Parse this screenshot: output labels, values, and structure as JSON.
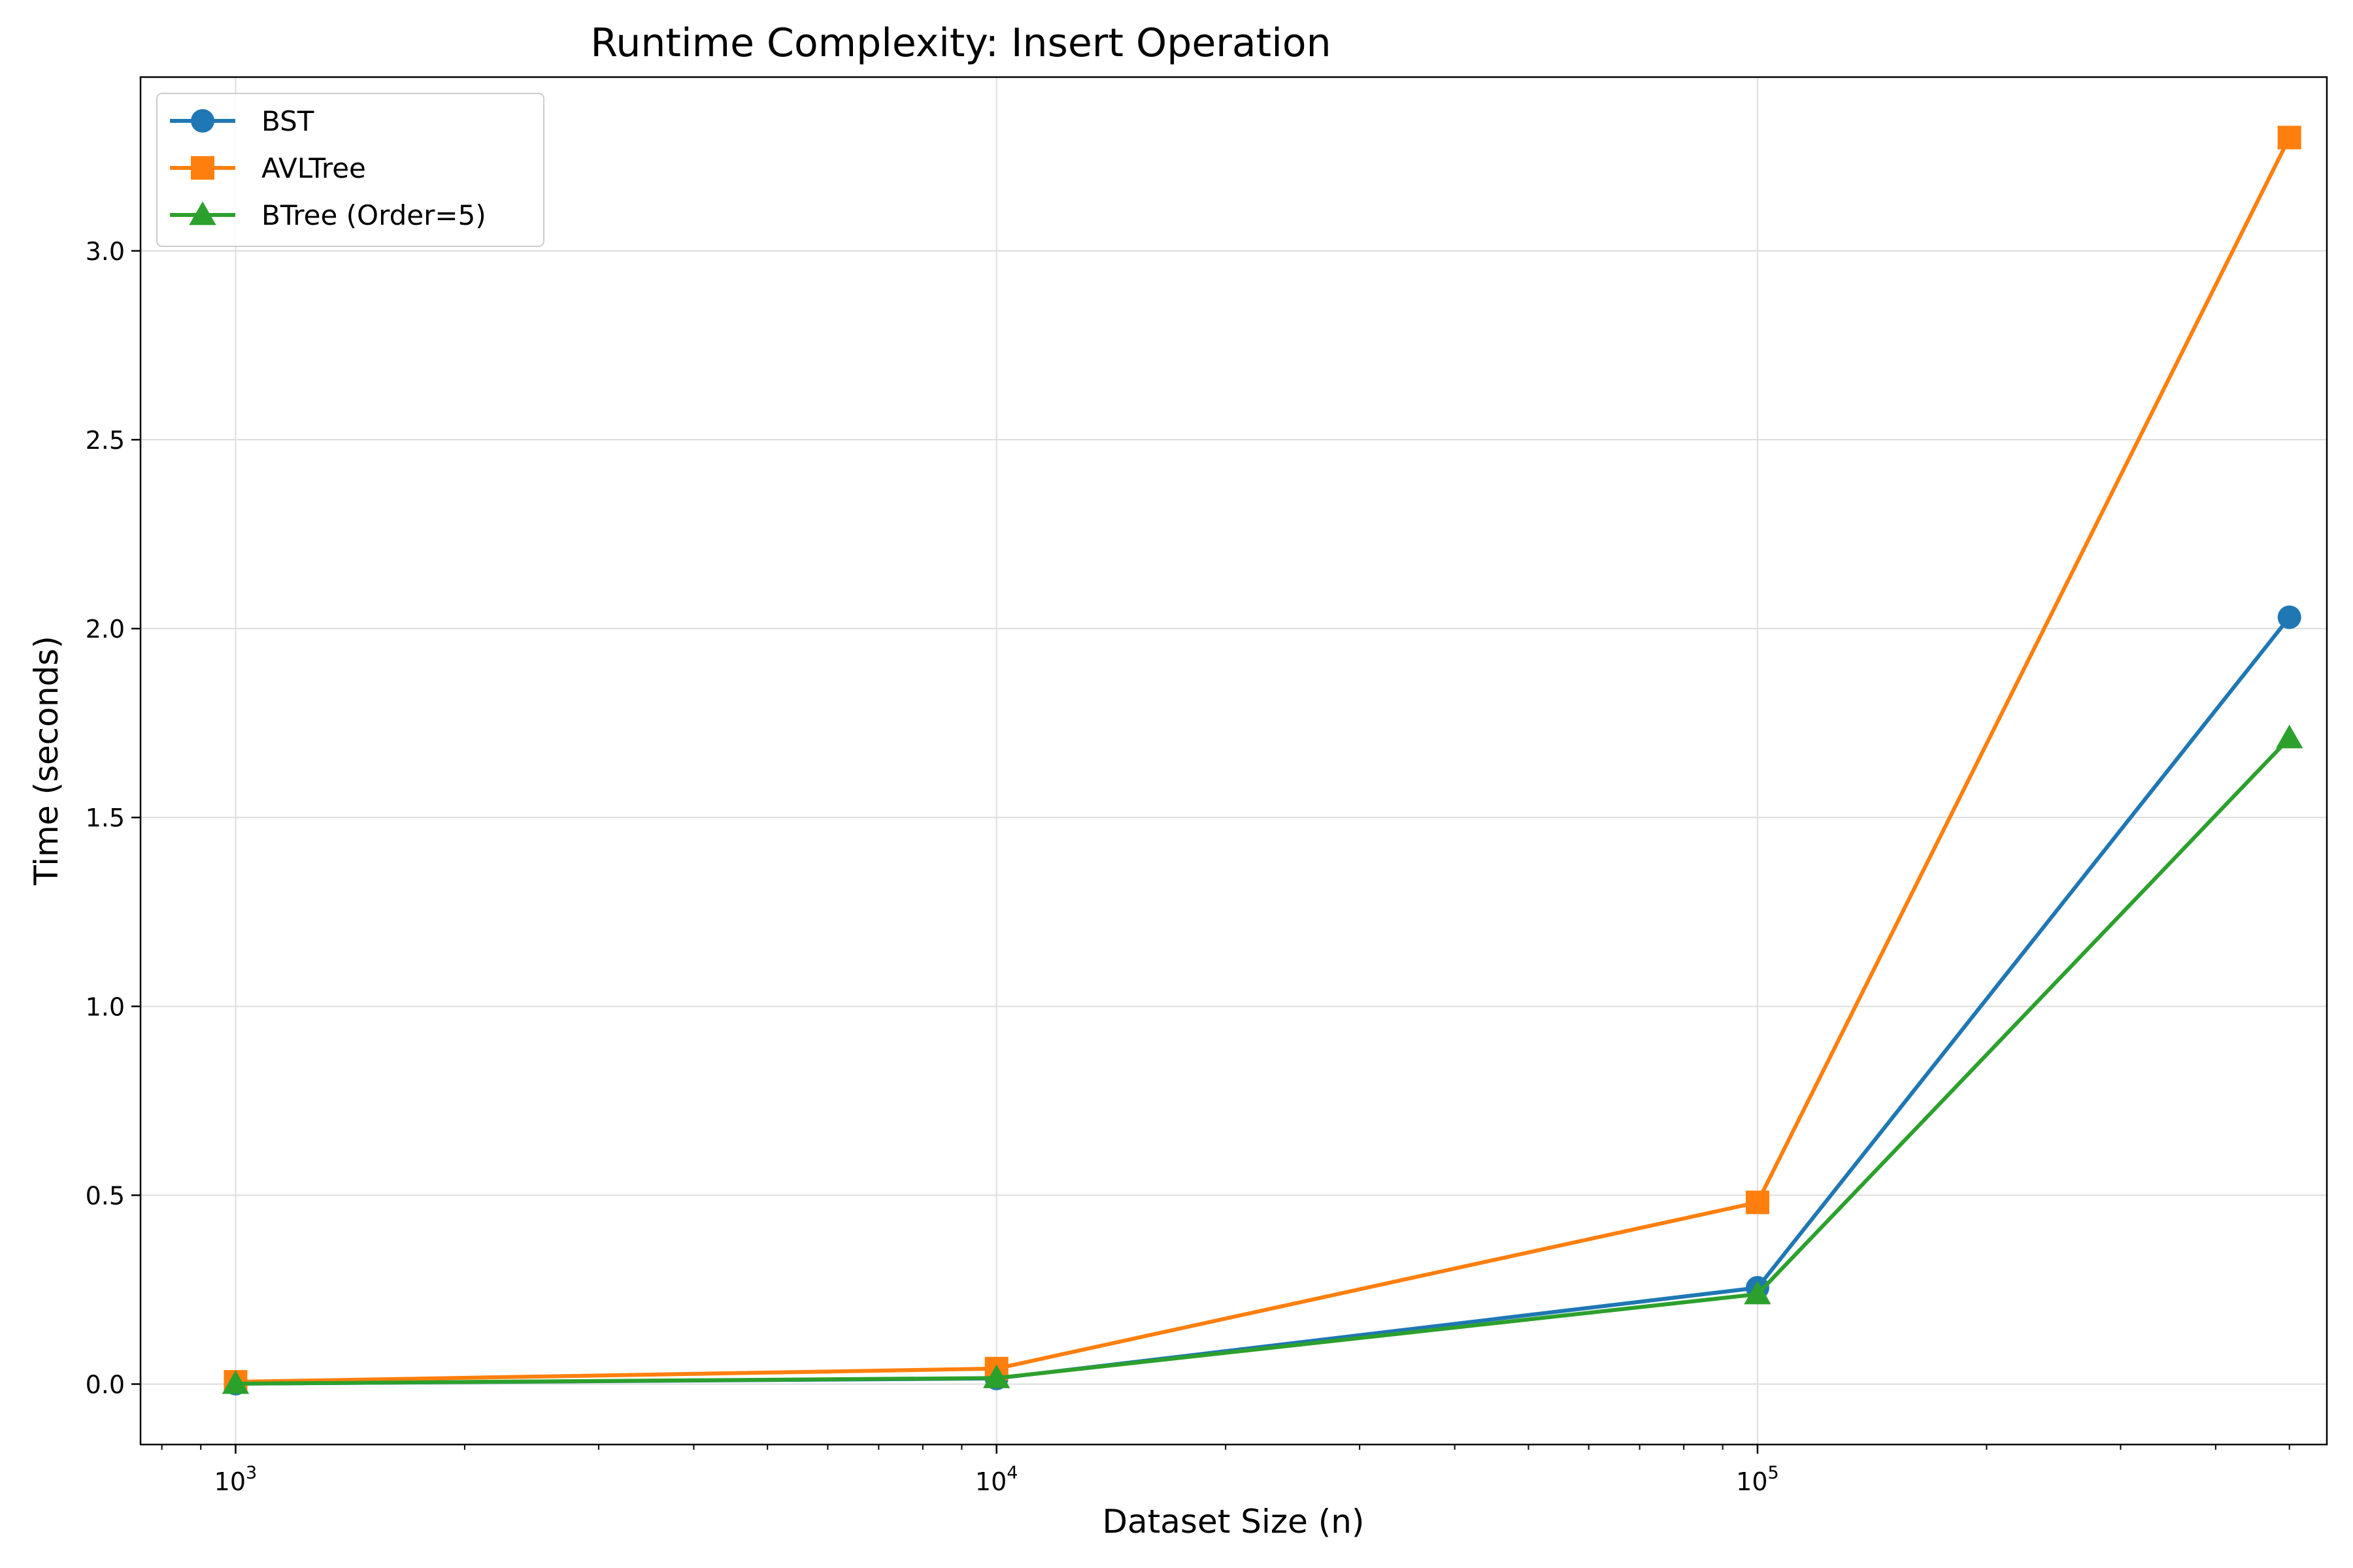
{
  "chart_data": {
    "type": "line",
    "title": "Runtime Complexity: Insert Operation",
    "xlabel": "Dataset Size (n)",
    "ylabel": "Time (seconds)",
    "xscale": "log",
    "xlim": [
      750,
      560000
    ],
    "ylim": [
      -0.16,
      3.46
    ],
    "x": [
      1000,
      10000,
      100000,
      500000
    ],
    "x_tick_labels": [
      {
        "value": 1000,
        "base": "10",
        "exp": "3"
      },
      {
        "value": 10000,
        "base": "10",
        "exp": "4"
      },
      {
        "value": 100000,
        "base": "10",
        "exp": "5"
      }
    ],
    "y_ticks": [
      0.0,
      0.5,
      1.0,
      1.5,
      2.0,
      2.5,
      3.0
    ],
    "y_tick_labels": [
      "0.0",
      "0.5",
      "1.0",
      "1.5",
      "2.0",
      "2.5",
      "3.0"
    ],
    "grid": true,
    "legend_position": "top-left",
    "series": [
      {
        "name": "BST",
        "marker": "circle",
        "color": "#1f77b4",
        "values": [
          0.001,
          0.015,
          0.255,
          2.03
        ]
      },
      {
        "name": "AVLTree",
        "marker": "square",
        "color": "#ff7f0e",
        "values": [
          0.006,
          0.041,
          0.481,
          3.3
        ]
      },
      {
        "name": "BTree (Order=5)",
        "marker": "triangle",
        "color": "#2ca02c",
        "values": [
          0.001,
          0.016,
          0.238,
          1.71
        ]
      }
    ]
  }
}
